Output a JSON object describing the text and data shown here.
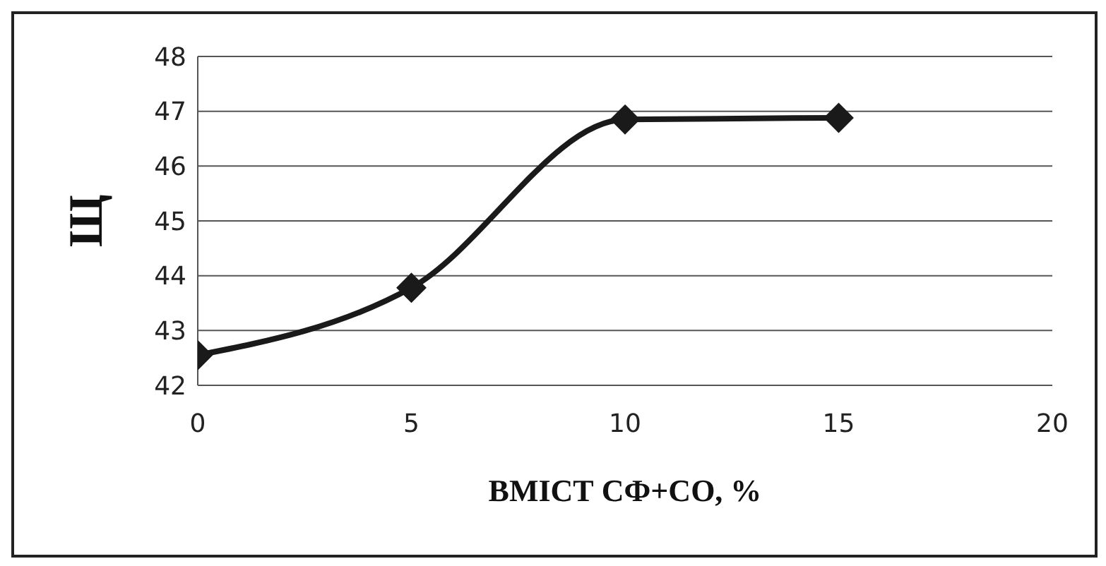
{
  "chart_data": {
    "type": "line",
    "xlabel": "ВМІСТ СФ+СО, %",
    "ylabel": "Щ",
    "x": [
      0,
      5,
      10,
      15
    ],
    "series": [
      {
        "color": "#1a1a1a",
        "values": [
          42.55,
          43.78,
          46.85,
          46.88
        ]
      }
    ],
    "xlim": [
      0,
      20
    ],
    "xticks": [
      0,
      5,
      10,
      15,
      20
    ],
    "ylim": [
      42,
      48
    ],
    "yticks": [
      42,
      43,
      44,
      45,
      46,
      47,
      48
    ],
    "grid": "y",
    "legend": false,
    "marker": "diamond",
    "line_style": "solid"
  }
}
